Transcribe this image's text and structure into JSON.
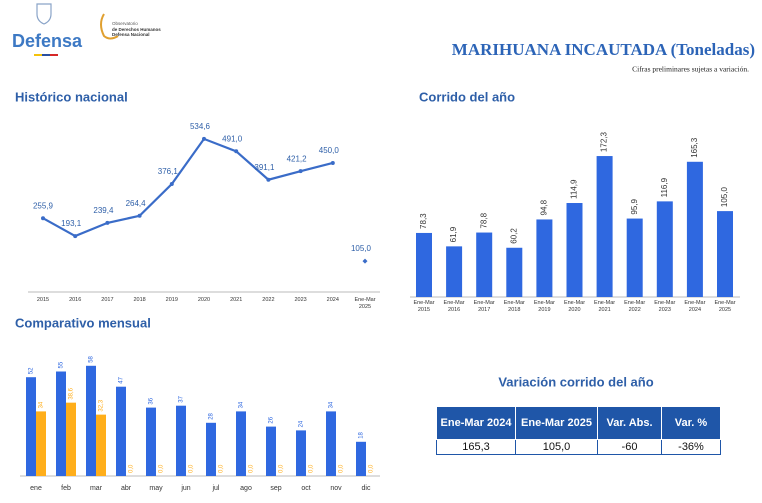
{
  "header": {
    "logo_text": "Defensa",
    "observatory": [
      "Observatorio",
      "de Derechos Humanos",
      "Defensa Nacional"
    ],
    "title": "MARIHUANA INCAUTADA (Toneladas)",
    "subtitle": "Cifras preliminares sujetas a variación."
  },
  "chart_data": [
    {
      "type": "line",
      "title": "Histórico nacional",
      "categories": [
        "2015",
        "2016",
        "2017",
        "2018",
        "2019",
        "2020",
        "2021",
        "2022",
        "2023",
        "2024",
        "Ene-Mar 2025"
      ],
      "values": [
        255.9,
        193.1,
        239.4,
        264.4,
        376.1,
        534.6,
        491.0,
        391.1,
        421.2,
        450.0,
        105.0
      ],
      "value_labels": [
        "255,9",
        "193,1",
        "239,4",
        "264,4",
        "376,1",
        "534,6",
        "491,0",
        "391,1",
        "421,2",
        "450,0",
        "105,0"
      ],
      "color": "#3a6cc8"
    },
    {
      "type": "bar",
      "title": "Corrido del año",
      "categories": [
        "Ene-Mar 2015",
        "Ene-Mar 2016",
        "Ene-Mar 2017",
        "Ene-Mar 2018",
        "Ene-Mar 2019",
        "Ene-Mar 2020",
        "Ene-Mar 2021",
        "Ene-Mar 2022",
        "Ene-Mar 2023",
        "Ene-Mar 2024",
        "Ene-Mar 2025"
      ],
      "values": [
        78.3,
        61.9,
        78.8,
        60.2,
        94.8,
        114.9,
        172.3,
        95.9,
        116.9,
        165.3,
        105.0
      ],
      "value_labels": [
        "78,3",
        "61,9",
        "78,8",
        "60,2",
        "94,8",
        "114,9",
        "172,3",
        "95,9",
        "116,9",
        "165,3",
        "105,0"
      ],
      "color": "#2f68e0"
    },
    {
      "type": "grouped-bar",
      "title": "Comparativo mensual",
      "categories": [
        "ene",
        "feb",
        "mar",
        "abr",
        "may",
        "jun",
        "jul",
        "ago",
        "sep",
        "oct",
        "nov",
        "dic"
      ],
      "series": [
        {
          "color": "#2f68e0",
          "values": [
            52,
            55,
            58,
            47,
            36,
            37,
            28,
            34,
            26,
            24,
            34,
            18
          ]
        },
        {
          "color": "#ffae1a",
          "values": [
            34,
            38.6,
            32.3,
            0.0,
            0.0,
            0.0,
            0.0,
            0.0,
            0.0,
            0.0,
            0.0,
            0.0
          ],
          "value_labels": [
            "34",
            "38,6",
            "32,3",
            "0,0",
            "0,0",
            "0,0",
            "0,0",
            "0,0",
            "0,0",
            "0,0",
            "0,0",
            "0,0"
          ]
        }
      ]
    }
  ],
  "table": {
    "title": "Variación corrido del año",
    "columns": [
      "Ene-Mar 2024",
      "Ene-Mar 2025",
      "Var. Abs.",
      "Var. %"
    ],
    "rows": [
      [
        "165,3",
        "105,0",
        "-60",
        "-36%"
      ]
    ]
  }
}
